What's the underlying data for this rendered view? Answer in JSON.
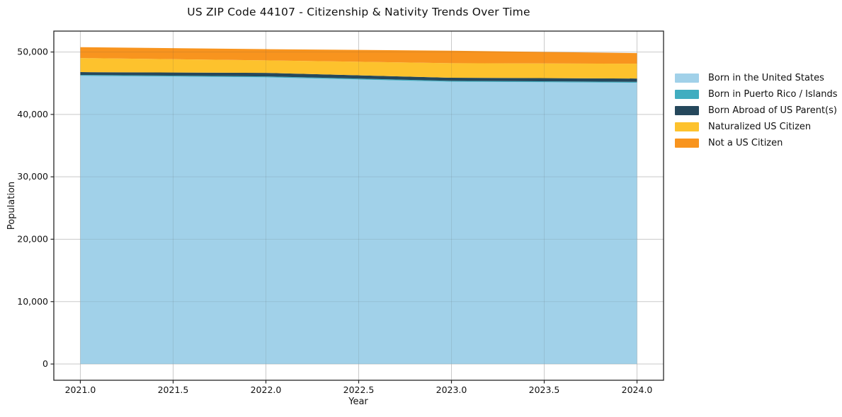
{
  "figure": {
    "title": "US ZIP Code 44107 - Citizenship & Nativity Trends Over Time"
  },
  "chart_data": {
    "type": "area",
    "stacked": true,
    "title": "US ZIP Code 44107 - Citizenship & Nativity Trends Over Time",
    "xlabel": "Year",
    "ylabel": "Population",
    "x": [
      2021,
      2022,
      2023,
      2024
    ],
    "series": [
      {
        "name": "Born in the United States",
        "color": "#a1d1e9",
        "values": [
          46180,
          45950,
          45240,
          45080
        ]
      },
      {
        "name": "Born in Puerto Rico / Islands",
        "color": "#41adc0",
        "values": [
          140,
          140,
          140,
          140
        ]
      },
      {
        "name": "Born Abroad of US Parent(s)",
        "color": "#25485c",
        "values": [
          460,
          570,
          490,
          530
        ]
      },
      {
        "name": "Naturalized US Citizen",
        "color": "#fdc22d",
        "values": [
          2250,
          2000,
          2340,
          2380
        ]
      },
      {
        "name": "Not a US Citizen",
        "color": "#f8941e",
        "values": [
          1740,
          1800,
          1990,
          1700
        ]
      }
    ],
    "totals": [
      50770,
      50460,
      50200,
      49830
    ],
    "x_tick_values": [
      2021.0,
      2021.5,
      2022.0,
      2022.5,
      2023.0,
      2023.5,
      2024.0
    ],
    "x_tick_labels": [
      "2021.0",
      "2021.5",
      "2022.0",
      "2022.5",
      "2023.0",
      "2023.5",
      "2024.0"
    ],
    "y_tick_values": [
      0,
      10000,
      20000,
      30000,
      40000,
      50000
    ],
    "y_tick_labels": [
      "0",
      "10,000",
      "20,000",
      "30,000",
      "40,000",
      "50,000"
    ],
    "xlim": [
      2020.857,
      2024.143
    ],
    "ylim": [
      -2600,
      53350
    ],
    "grid": true,
    "legend_position": "outside-right",
    "colors": {
      "axis": "#262626",
      "grid": "#dddddd",
      "text": "#111111",
      "background": "#ffffff"
    }
  }
}
